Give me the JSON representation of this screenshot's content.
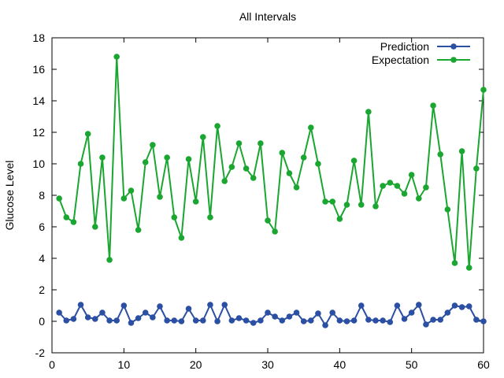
{
  "chart_data": {
    "type": "line",
    "title": "All Intervals",
    "xlabel": "",
    "ylabel": "Glucose Level",
    "xlim": [
      0,
      60
    ],
    "ylim": [
      -2,
      18
    ],
    "xticks": [
      0,
      10,
      20,
      30,
      40,
      50,
      60
    ],
    "yticks": [
      -2,
      0,
      2,
      4,
      6,
      8,
      10,
      12,
      14,
      16,
      18
    ],
    "grid": false,
    "legend_position": "top-right",
    "series": [
      {
        "name": "Prediction",
        "color": "#2a4fa3",
        "x": [
          1,
          2,
          3,
          4,
          5,
          6,
          7,
          8,
          9,
          10,
          11,
          12,
          13,
          14,
          15,
          16,
          17,
          18,
          19,
          20,
          21,
          22,
          23,
          24,
          25,
          26,
          27,
          28,
          29,
          30,
          31,
          32,
          33,
          34,
          35,
          36,
          37,
          38,
          39,
          40,
          41,
          42,
          43,
          44,
          45,
          46,
          47,
          48,
          49,
          50,
          51,
          52,
          53,
          54,
          55,
          56,
          57,
          58,
          59,
          60
        ],
        "values": [
          0.55,
          0.05,
          0.15,
          1.05,
          0.25,
          0.15,
          0.55,
          0.05,
          0.05,
          1.0,
          -0.1,
          0.2,
          0.55,
          0.25,
          0.95,
          0.05,
          0.05,
          0.0,
          0.8,
          0.05,
          0.05,
          1.05,
          0.0,
          1.05,
          0.05,
          0.2,
          0.05,
          -0.1,
          0.05,
          0.55,
          0.3,
          0.05,
          0.3,
          0.55,
          0.0,
          0.05,
          0.5,
          -0.25,
          0.55,
          0.05,
          0.0,
          0.05,
          1.0,
          0.1,
          0.05,
          0.05,
          -0.05,
          1.0,
          0.15,
          0.55,
          1.05,
          -0.2,
          0.1,
          0.1,
          0.55,
          1.0,
          0.9,
          0.95,
          0.1,
          0.0
        ]
      },
      {
        "name": "Expectation",
        "color": "#1aa630",
        "x": [
          1,
          2,
          3,
          4,
          5,
          6,
          7,
          8,
          9,
          10,
          11,
          12,
          13,
          14,
          15,
          16,
          17,
          18,
          19,
          20,
          21,
          22,
          23,
          24,
          25,
          26,
          27,
          28,
          29,
          30,
          31,
          32,
          33,
          34,
          35,
          36,
          37,
          38,
          39,
          40,
          41,
          42,
          43,
          44,
          45,
          46,
          47,
          48,
          49,
          50,
          51,
          52,
          53,
          54,
          55,
          56,
          57,
          58,
          59,
          60
        ],
        "values": [
          7.8,
          6.6,
          6.3,
          10.0,
          11.9,
          6.0,
          10.4,
          3.9,
          16.8,
          7.8,
          8.3,
          5.8,
          10.1,
          11.2,
          7.9,
          10.4,
          6.6,
          5.3,
          10.3,
          7.6,
          11.7,
          6.6,
          12.4,
          8.9,
          9.8,
          11.3,
          9.7,
          9.1,
          11.3,
          6.4,
          5.7,
          10.7,
          9.4,
          8.5,
          10.4,
          12.3,
          10.0,
          7.6,
          7.6,
          6.5,
          7.4,
          10.2,
          7.4,
          13.3,
          7.3,
          8.6,
          8.8,
          8.6,
          8.1,
          9.3,
          7.8,
          8.5,
          13.7,
          10.6,
          7.1,
          3.7,
          10.8,
          3.4,
          9.7,
          14.7
        ]
      }
    ]
  }
}
